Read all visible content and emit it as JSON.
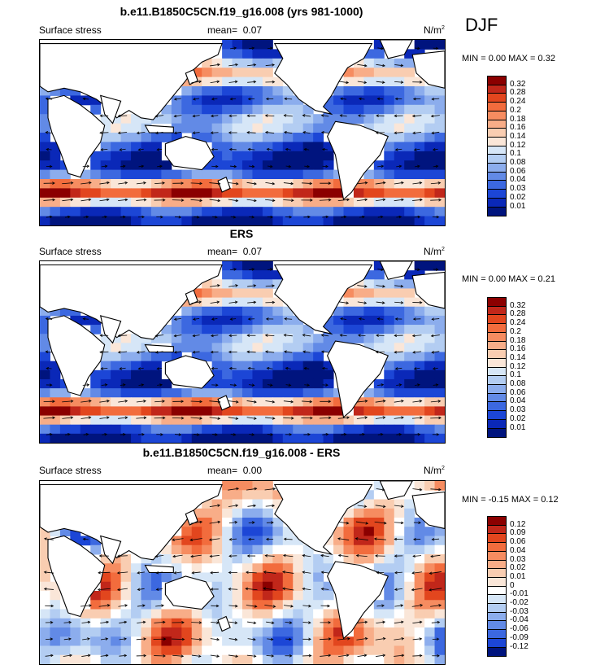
{
  "season": "DJF",
  "panels": [
    {
      "title": "b.e11.B1850C5CN.f19_g16.008 (yrs 981-1000)",
      "variable": "Surface stress",
      "mean_label": "mean=",
      "mean_value": "0.07",
      "units": "N/m",
      "units_exp": "2",
      "minmax": "MIN =   0.00 MAX =   0.32",
      "colorbar_labels": [
        "0.32",
        "0.28",
        "0.24",
        "0.2",
        "0.18",
        "0.16",
        "0.14",
        "0.12",
        "0.1",
        "0.08",
        "0.06",
        "0.04",
        "0.03",
        "0.02",
        "0.01"
      ],
      "colorbar_colors": [
        "#8b0000",
        "#c1271a",
        "#e2461e",
        "#f26c3d",
        "#f68c60",
        "#f8ad88",
        "#f9cdb1",
        "#fae6d8",
        "#d6e6f7",
        "#b3cdf2",
        "#8caded",
        "#628ae6",
        "#3c68e0",
        "#1c46d6",
        "#0a28b8",
        "#00147e"
      ]
    },
    {
      "title": "ERS",
      "variable": "Surface stress",
      "mean_label": "mean=",
      "mean_value": "0.07",
      "units": "N/m",
      "units_exp": "2",
      "minmax": "MIN =   0.00 MAX =   0.21",
      "colorbar_labels": [
        "0.32",
        "0.28",
        "0.24",
        "0.2",
        "0.18",
        "0.16",
        "0.14",
        "0.12",
        "0.1",
        "0.08",
        "0.06",
        "0.04",
        "0.03",
        "0.02",
        "0.01"
      ],
      "colorbar_colors": [
        "#8b0000",
        "#c1271a",
        "#e2461e",
        "#f26c3d",
        "#f68c60",
        "#f8ad88",
        "#f9cdb1",
        "#fae6d8",
        "#d6e6f7",
        "#b3cdf2",
        "#8caded",
        "#628ae6",
        "#3c68e0",
        "#1c46d6",
        "#0a28b8",
        "#00147e"
      ]
    },
    {
      "title": "b.e11.B1850C5CN.f19_g16.008 - ERS",
      "variable": "Surface stress",
      "mean_label": "mean=",
      "mean_value": "0.00",
      "units": "N/m",
      "units_exp": "2",
      "minmax": "MIN =  -0.15 MAX =   0.12",
      "colorbar_labels": [
        "0.12",
        "0.09",
        "0.06",
        "0.04",
        "0.03",
        "0.02",
        "0.01",
        "0",
        "-0.01",
        "-0.02",
        "-0.03",
        "-0.04",
        "-0.06",
        "-0.09",
        "-0.12"
      ],
      "colorbar_colors": [
        "#8b0000",
        "#c1271a",
        "#e2461e",
        "#f26c3d",
        "#f68c60",
        "#f8ad88",
        "#f9cdb1",
        "#fae6d8",
        "#ffffff",
        "#d6e6f7",
        "#b3cdf2",
        "#8caded",
        "#628ae6",
        "#3c68e0",
        "#1c46d6",
        "#00147e"
      ]
    }
  ]
}
